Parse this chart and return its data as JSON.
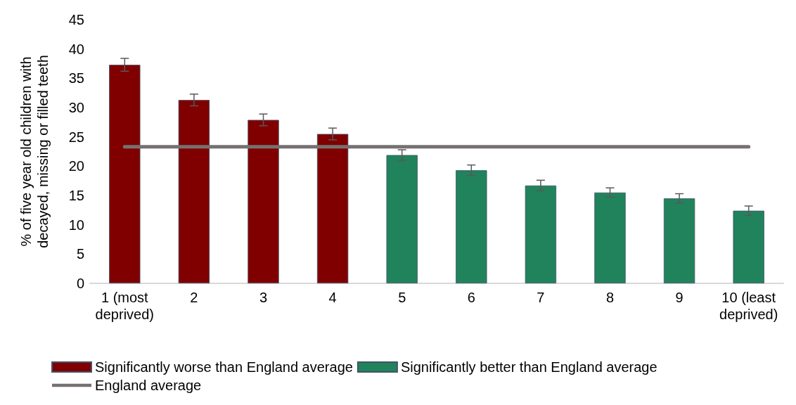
{
  "chart_data": {
    "type": "bar",
    "ylabel": "% of five year old children with\ndecayed, missing or filled teeth",
    "categories": [
      "1 (most\ndeprived)",
      "2",
      "3",
      "4",
      "5",
      "6",
      "7",
      "8",
      "9",
      "10 (least\ndeprived)"
    ],
    "series": [
      {
        "name": "Significantly worse than England average",
        "color": "#800000",
        "values": [
          37.3,
          31.3,
          27.9,
          25.5,
          null,
          null,
          null,
          null,
          null,
          null
        ],
        "errors": [
          1.1,
          1,
          1,
          1,
          null,
          null,
          null,
          null,
          null,
          null
        ]
      },
      {
        "name": "Significantly better than England average",
        "color": "#20835c",
        "values": [
          null,
          null,
          null,
          null,
          21.9,
          19.3,
          16.7,
          15.5,
          14.5,
          12.4
        ],
        "errors": [
          null,
          null,
          null,
          null,
          0.9,
          0.9,
          0.9,
          0.8,
          0.8,
          0.8
        ]
      },
      {
        "name": "England average",
        "type": "line",
        "color": "#767171",
        "values": [
          23.3,
          23.3,
          23.3,
          23.3,
          23.3,
          23.3,
          23.3,
          23.3,
          23.3,
          23.3
        ]
      }
    ],
    "stacked": true,
    "ylim": [
      0,
      45
    ],
    "yticks": [
      0,
      5,
      10,
      15,
      20,
      25,
      30,
      35,
      40,
      45
    ],
    "grid": false,
    "legend": "bottom",
    "marker": "none"
  }
}
